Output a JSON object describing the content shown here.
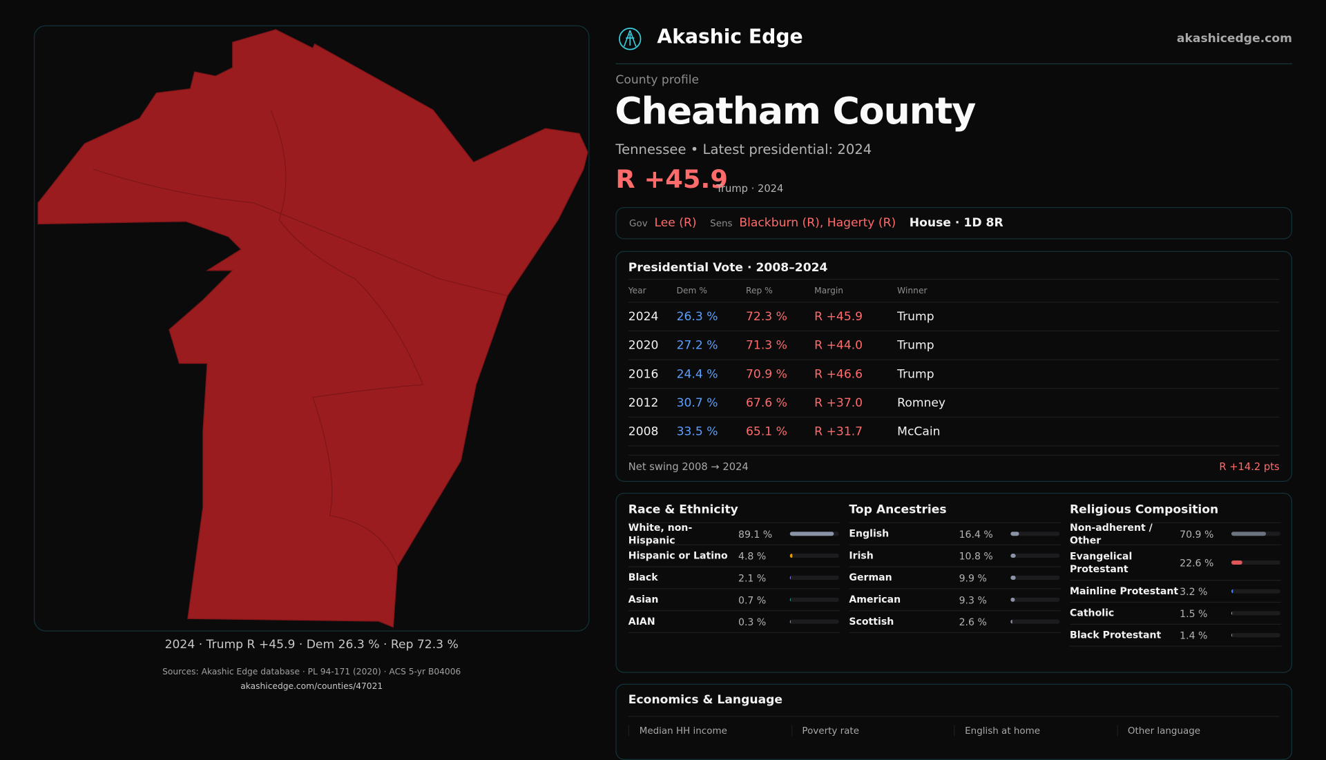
{
  "brand": {
    "name": "Akashic Edge",
    "site": "akashicedge.com",
    "logo": "akashic-logo-icon"
  },
  "colors": {
    "rep": "#ff6b6b",
    "dem": "#5aa0ff",
    "map_fill": "#9b1c1f",
    "border": "#12333a"
  },
  "profile": {
    "kicker": "County profile",
    "title": "Cheatham County",
    "subtitle": "Tennessee • Latest presidential: 2024",
    "margin": "R +45.9",
    "margin_sub": "Trump · 2024"
  },
  "map": {
    "caption": "2024 · Trump R +45.9 · Dem 26.3 % · Rep 72.3 %"
  },
  "officials": {
    "gov_label": "Gov",
    "gov": "Lee (R)",
    "sens_label": "Sens",
    "sens": "Blackburn (R), Hagerty (R)",
    "house": "House · 1D 8R"
  },
  "presidential": {
    "title": "Presidential Vote · 2008–2024",
    "headers": [
      "Year",
      "Dem %",
      "Rep %",
      "Margin",
      "Winner"
    ],
    "rows": [
      {
        "year": "2024",
        "dem": "26.3 %",
        "rep": "72.3 %",
        "margin": "R +45.9",
        "winner": "Trump"
      },
      {
        "year": "2020",
        "dem": "27.2 %",
        "rep": "71.3 %",
        "margin": "R +44.0",
        "winner": "Trump"
      },
      {
        "year": "2016",
        "dem": "24.4 %",
        "rep": "70.9 %",
        "margin": "R +46.6",
        "winner": "Trump"
      },
      {
        "year": "2012",
        "dem": "30.7 %",
        "rep": "67.6 %",
        "margin": "R +37.0",
        "winner": "Romney"
      },
      {
        "year": "2008",
        "dem": "33.5 %",
        "rep": "65.1 %",
        "margin": "R +31.7",
        "winner": "McCain"
      }
    ],
    "swing_label": "Net swing 2008 → 2024",
    "swing_value": "R +14.2 pts"
  },
  "race": {
    "title": "Race & Ethnicity",
    "items": [
      {
        "name": "White, non-Hispanic",
        "value": "89.1 %",
        "pct": 89.1,
        "color": "#8a94a6"
      },
      {
        "name": "Hispanic or Latino",
        "value": "4.8 %",
        "pct": 4.8,
        "color": "#e39a0b"
      },
      {
        "name": "Black",
        "value": "2.1 %",
        "pct": 2.1,
        "color": "#8b7cf6"
      },
      {
        "name": "Asian",
        "value": "0.7 %",
        "pct": 0.7,
        "color": "#2a9d8f"
      },
      {
        "name": "AIAN",
        "value": "0.3 %",
        "pct": 0.3,
        "color": "#8a94a6"
      }
    ]
  },
  "ancestry": {
    "title": "Top Ancestries",
    "items": [
      {
        "name": "English",
        "value": "16.4 %",
        "pct": 16.4,
        "color": "#8a94a6"
      },
      {
        "name": "Irish",
        "value": "10.8 %",
        "pct": 10.8,
        "color": "#8a94a6"
      },
      {
        "name": "German",
        "value": "9.9 %",
        "pct": 9.9,
        "color": "#8a94a6"
      },
      {
        "name": "American",
        "value": "9.3 %",
        "pct": 9.3,
        "color": "#8a94a6"
      },
      {
        "name": "Scottish",
        "value": "2.6 %",
        "pct": 2.6,
        "color": "#8a94a6"
      }
    ]
  },
  "religion": {
    "title": "Religious Composition",
    "items": [
      {
        "name": "Non-adherent / Other",
        "value": "70.9 %",
        "pct": 70.9,
        "color": "#6b7280"
      },
      {
        "name": "Evangelical Protestant",
        "value": "22.6 %",
        "pct": 22.6,
        "color": "#e05555"
      },
      {
        "name": "Mainline Protestant",
        "value": "3.2 %",
        "pct": 3.2,
        "color": "#3b82f6"
      },
      {
        "name": "Catholic",
        "value": "1.5 %",
        "pct": 1.5,
        "color": "#e39a0b"
      },
      {
        "name": "Black Protestant",
        "value": "1.4 %",
        "pct": 1.4,
        "color": "#8b7cf6"
      }
    ]
  },
  "economics": {
    "title": "Economics & Language",
    "stats": [
      {
        "label": "Median HH income"
      },
      {
        "label": "Poverty rate"
      },
      {
        "label": "English at home"
      },
      {
        "label": "Other language"
      }
    ]
  },
  "sources": {
    "line1": "Sources: Akashic Edge database · PL 94-171 (2020) · ACS 5-yr B04006",
    "line2": "akashicedge.com/counties/47021"
  }
}
